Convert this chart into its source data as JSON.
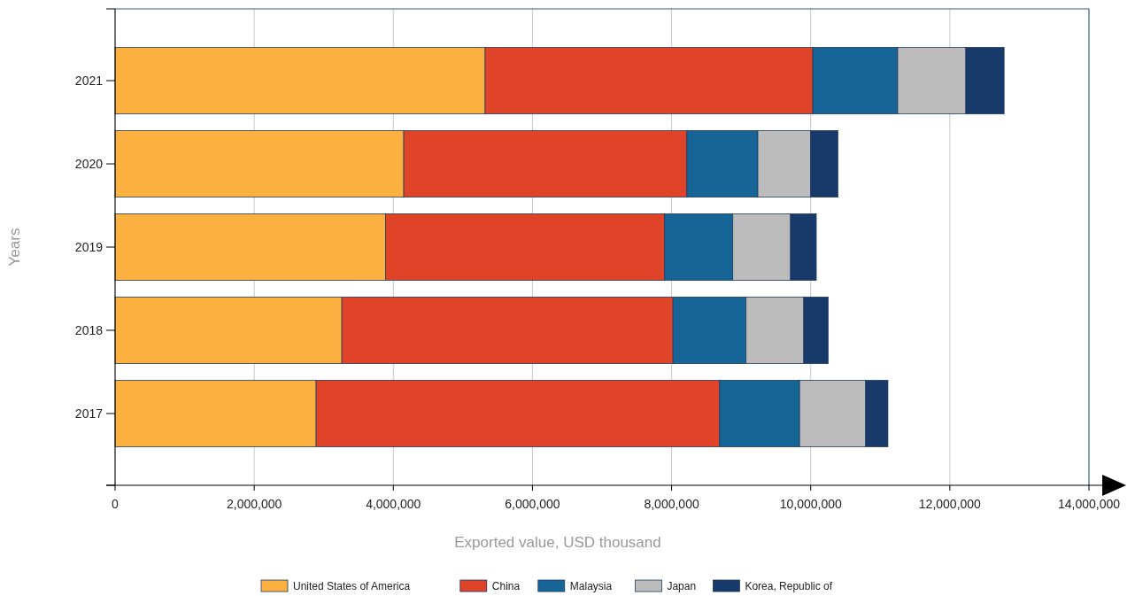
{
  "chart_data": {
    "type": "bar",
    "orientation": "horizontal",
    "stacked": true,
    "xlabel": "Exported value, USD thousand",
    "ylabel": "Years",
    "categories": [
      "2021",
      "2020",
      "2019",
      "2018",
      "2017"
    ],
    "series": [
      {
        "name": "United States of America",
        "color": "#fbb040",
        "values": [
          5320000,
          4150000,
          3890000,
          3260000,
          2890000
        ]
      },
      {
        "name": "China",
        "color": "#e04428",
        "values": [
          4710000,
          4070000,
          4010000,
          4760000,
          5800000
        ]
      },
      {
        "name": "Malaysia",
        "color": "#176596",
        "values": [
          1220000,
          1020000,
          980000,
          1050000,
          1150000
        ]
      },
      {
        "name": "Japan",
        "color": "#bcbcbc",
        "values": [
          980000,
          760000,
          830000,
          830000,
          950000
        ]
      },
      {
        "name": "Korea, Republic of",
        "color": "#173a6a",
        "values": [
          550000,
          390000,
          370000,
          350000,
          320000
        ]
      }
    ],
    "xlim": [
      0,
      14000000
    ],
    "xticks": [
      {
        "value": 0,
        "label": "0"
      },
      {
        "value": 2000000,
        "label": "2,000,000"
      },
      {
        "value": 4000000,
        "label": "4,000,000"
      },
      {
        "value": 6000000,
        "label": "6,000,000"
      },
      {
        "value": 8000000,
        "label": "8,000,000"
      },
      {
        "value": 10000000,
        "label": "10,000,000"
      },
      {
        "value": 12000000,
        "label": "12,000,000"
      },
      {
        "value": 14000000,
        "label": "14,000,000"
      }
    ],
    "grid": "x",
    "legend": "bottom"
  }
}
